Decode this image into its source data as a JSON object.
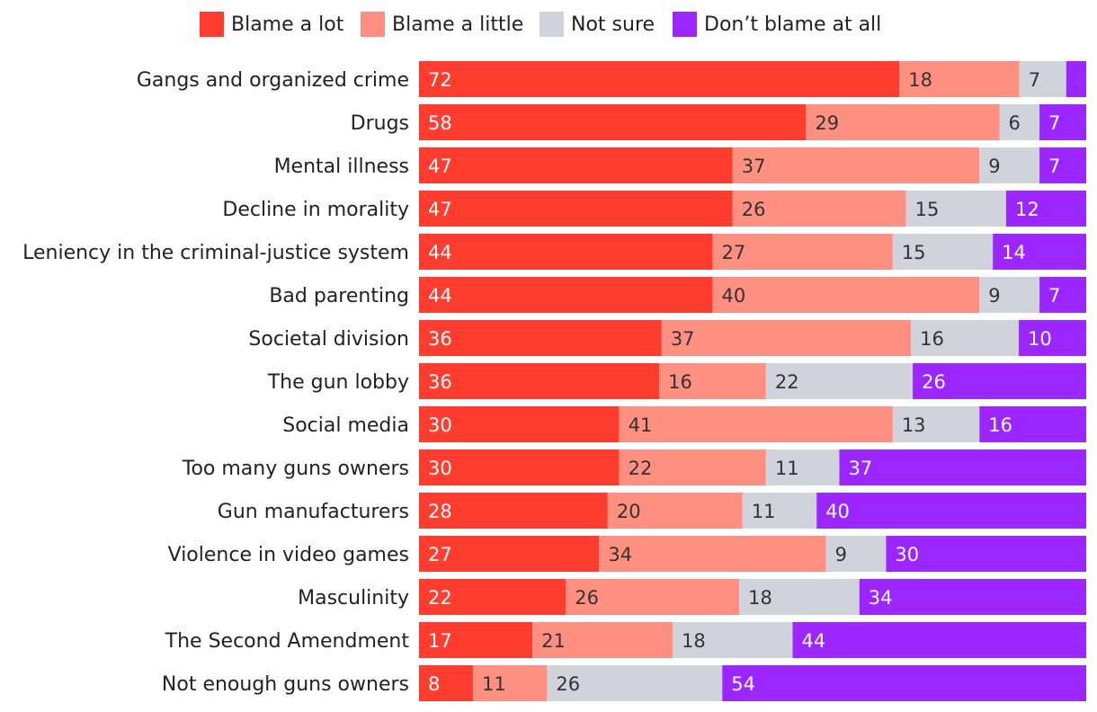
{
  "chart_data": {
    "type": "bar",
    "orientation": "horizontal",
    "stacked": true,
    "legend_position": "top",
    "categories": [
      "Gangs and organized crime",
      "Drugs",
      "Mental illness",
      "Decline in morality",
      "Leniency in the criminal-justice system",
      "Bad parenting",
      "Societal division",
      "The gun lobby",
      "Social media",
      "Too many guns owners",
      "Gun manufacturers",
      "Violence in video games",
      "Masculinity",
      "The Second Amendment",
      "Not enough guns owners"
    ],
    "series": [
      {
        "name": "Blame a lot",
        "color": "#ff3d2e",
        "label_color": "#ffffff",
        "values": [
          72,
          58,
          47,
          47,
          44,
          44,
          36,
          36,
          30,
          30,
          28,
          27,
          22,
          17,
          8
        ]
      },
      {
        "name": "Blame a little",
        "color": "#ff8f80",
        "label_color": "#333333",
        "values": [
          18,
          29,
          37,
          26,
          27,
          40,
          37,
          16,
          41,
          22,
          20,
          34,
          26,
          21,
          11
        ]
      },
      {
        "name": "Not sure",
        "color": "#d0d3dc",
        "label_color": "#333333",
        "values": [
          7,
          6,
          9,
          15,
          15,
          9,
          16,
          22,
          13,
          11,
          11,
          9,
          18,
          18,
          26
        ]
      },
      {
        "name": "Don’t blame at all",
        "color": "#9b26ff",
        "label_color": "#ffffff",
        "values": [
          3,
          7,
          7,
          12,
          14,
          7,
          10,
          26,
          16,
          37,
          40,
          30,
          34,
          44,
          54
        ]
      }
    ],
    "hidden_labels": [
      [
        0,
        3
      ]
    ]
  }
}
